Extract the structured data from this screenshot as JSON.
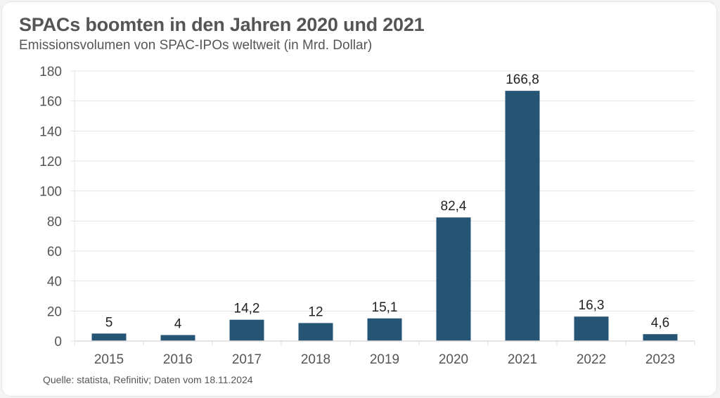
{
  "chart_data": {
    "type": "bar",
    "title": "SPACs boomten in den Jahren 2020 und 2021",
    "subtitle": "Emissionsvolumen von SPAC-IPOs weltweit (in Mrd. Dollar)",
    "xlabel": "",
    "ylabel": "",
    "categories": [
      "2015",
      "2016",
      "2017",
      "2018",
      "2019",
      "2020",
      "2021",
      "2022",
      "2023"
    ],
    "values": [
      5,
      4,
      14.2,
      12,
      15.1,
      82.4,
      166.8,
      16.3,
      4.6
    ],
    "data_labels": [
      "5",
      "4",
      "14,2",
      "12",
      "15,1",
      "82,4",
      "166,8",
      "16,3",
      "4,6"
    ],
    "ylim": [
      0,
      180
    ],
    "yticks": [
      0,
      20,
      40,
      60,
      80,
      100,
      120,
      140,
      160,
      180
    ],
    "grid": true,
    "legend": "none",
    "bar_color": "#265475",
    "source": "Quelle: statista, Refinitiv; Daten vom 18.11.2024"
  }
}
